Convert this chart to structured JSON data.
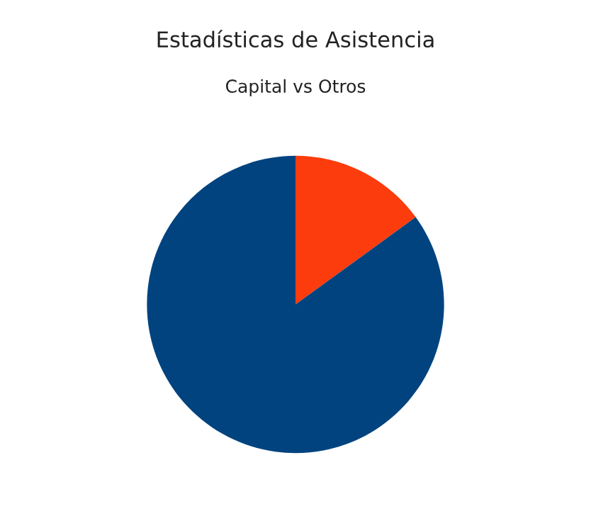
{
  "chart_data": {
    "type": "pie",
    "title": "Estadísticas de Asistencia",
    "subtitle": "Capital vs Otros",
    "categories": [
      null,
      null
    ],
    "values": [
      15,
      85
    ],
    "colors": [
      "#fc3c0c",
      "#00437f"
    ]
  }
}
